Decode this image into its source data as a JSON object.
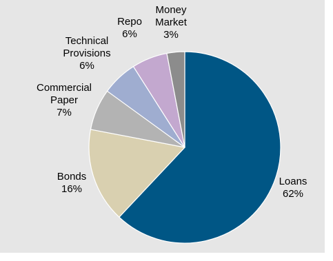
{
  "chart_data": {
    "type": "pie",
    "categories": [
      "Loans",
      "Bonds",
      "Commercial Paper",
      "Technical Provisions",
      "Repo",
      "Money Market"
    ],
    "values": [
      62,
      16,
      7,
      6,
      6,
      3
    ],
    "data_labels": [
      "62%",
      "16%",
      "7%",
      "6%",
      "6%",
      "3%"
    ],
    "label_lines": [
      [
        "Loans",
        "62%"
      ],
      [
        "Bonds",
        "16%"
      ],
      [
        "Commercial",
        "Paper",
        "7%"
      ],
      [
        "Technical",
        "Provisions",
        "6%"
      ],
      [
        "Repo",
        "6%"
      ],
      [
        "Money",
        "Market",
        "3%"
      ]
    ],
    "colors": [
      "#005685",
      "#d9d0b0",
      "#b3b3b3",
      "#9fadd0",
      "#c3a8cf",
      "#8c8c8c"
    ],
    "background": "#e6e6e6",
    "legend": "none",
    "title": ""
  }
}
